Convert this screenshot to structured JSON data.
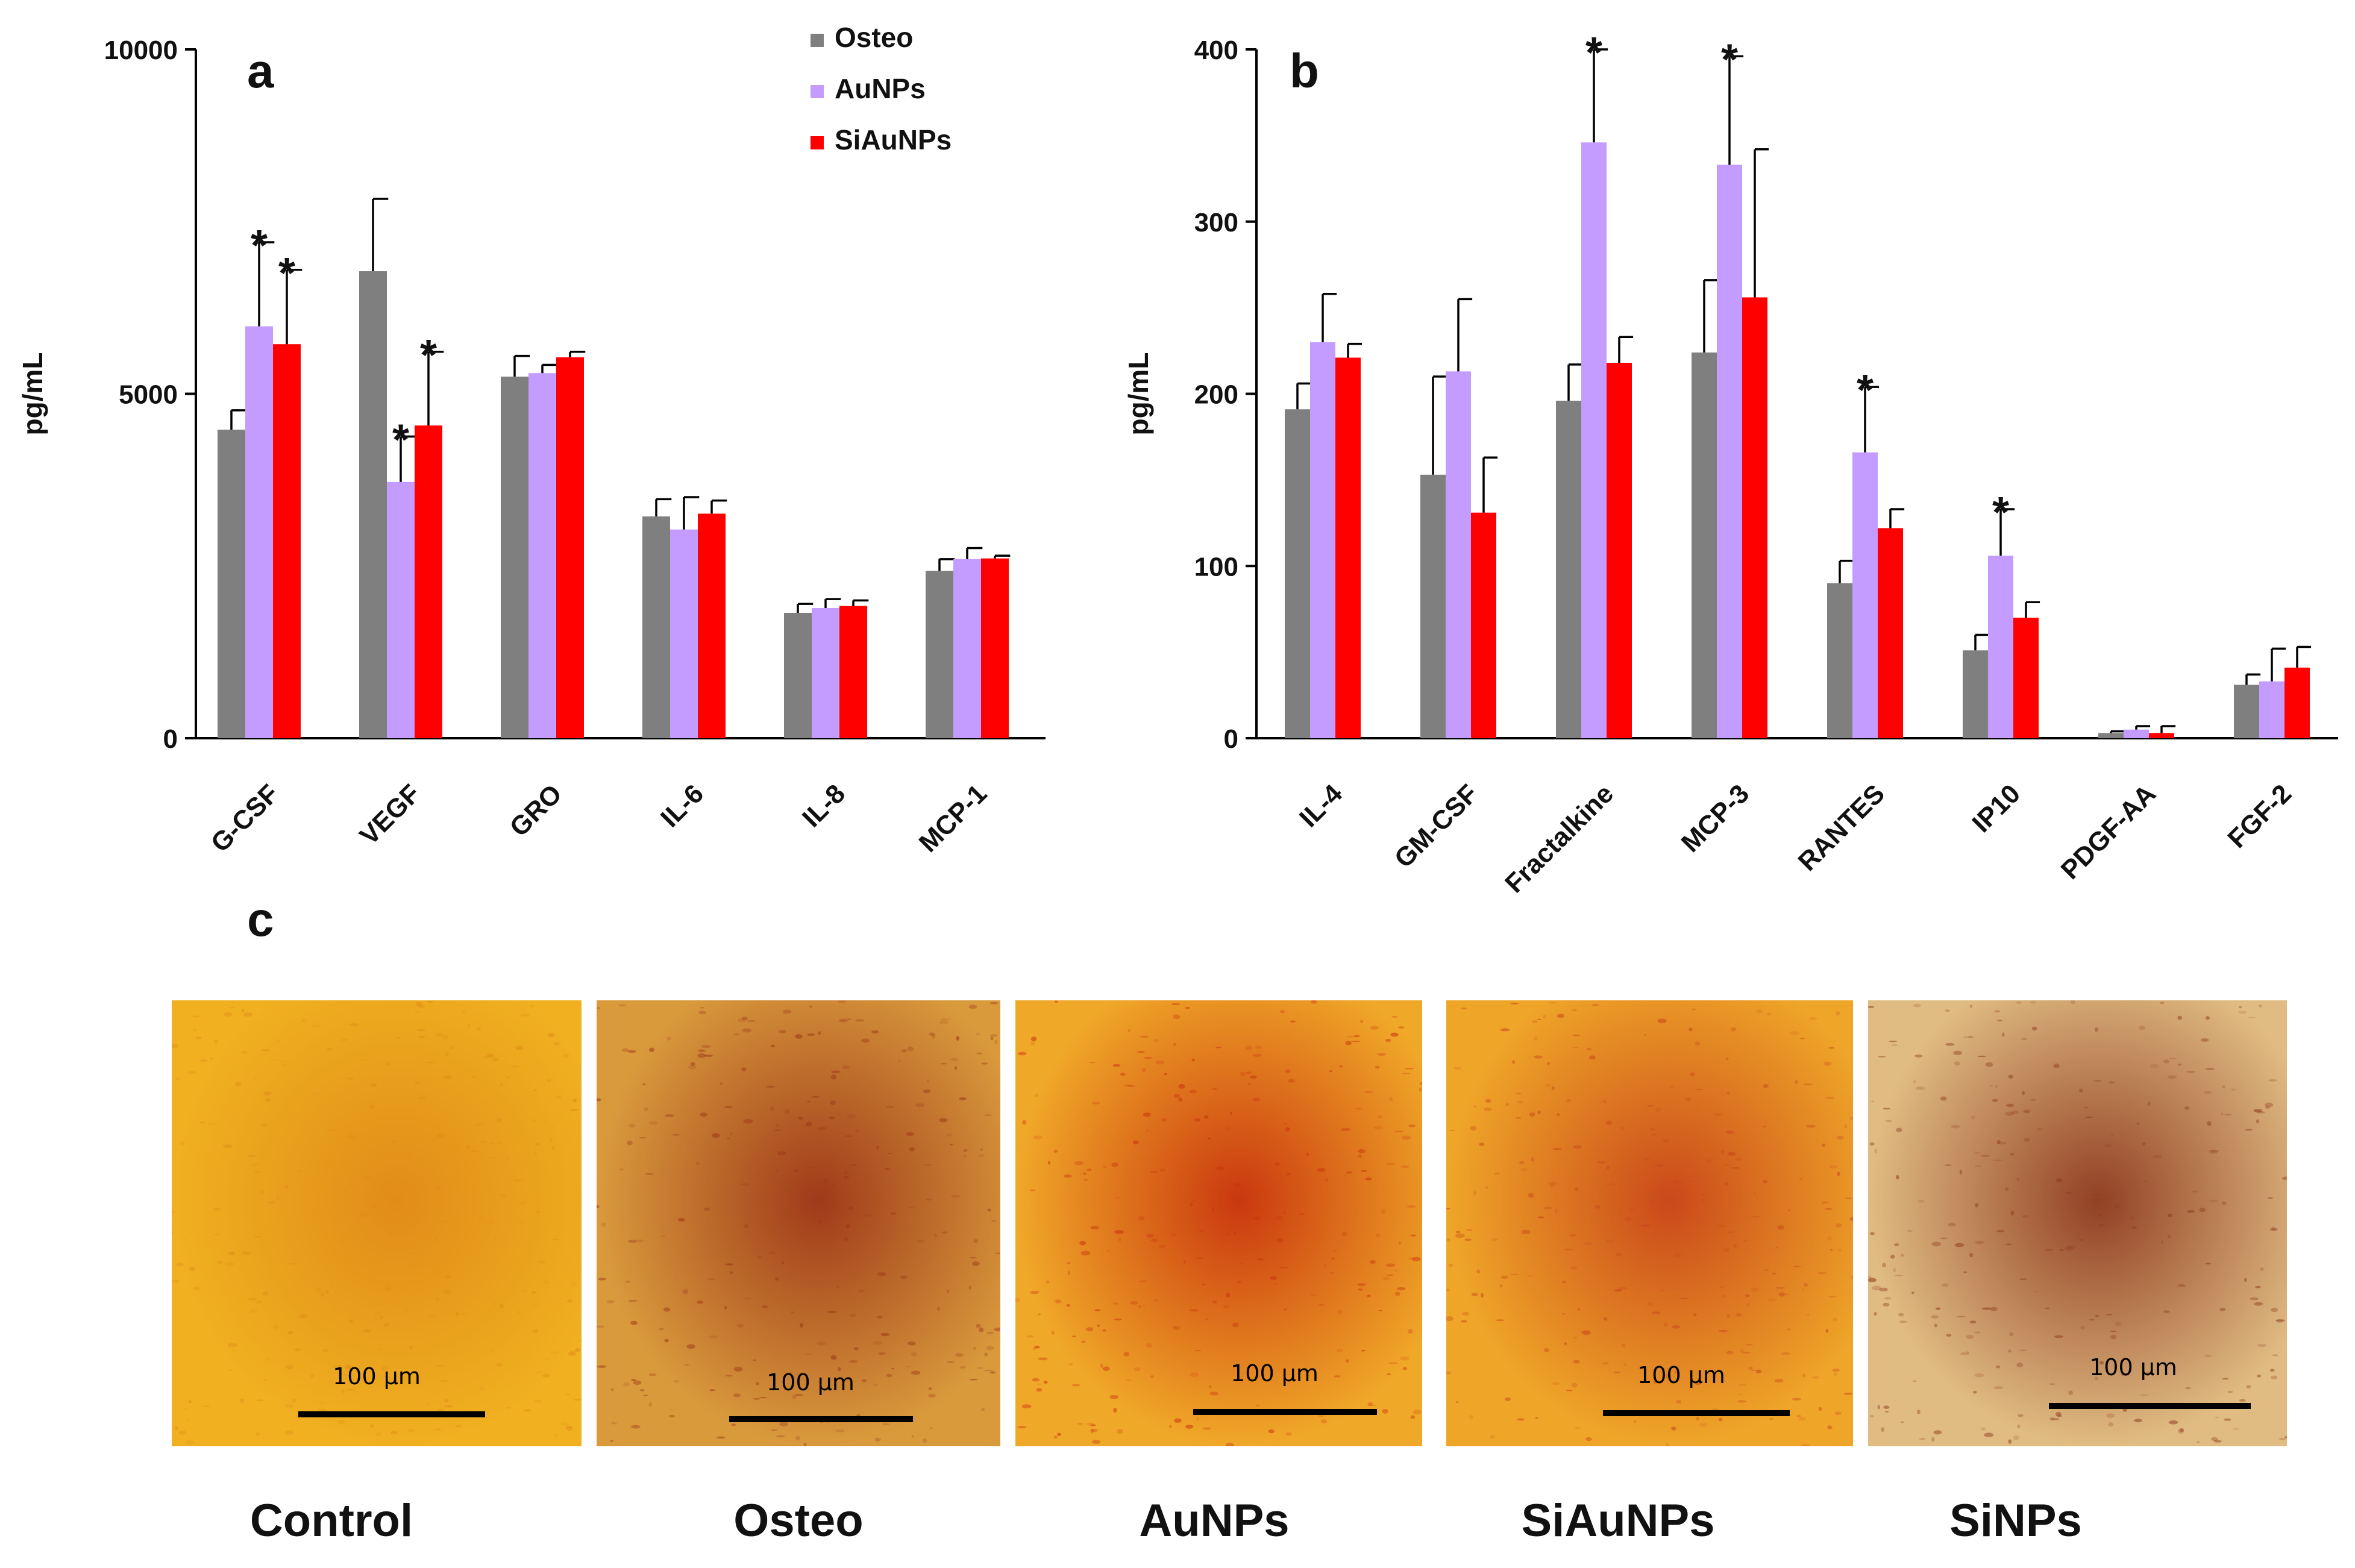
{
  "chart_data": [
    {
      "type": "bar",
      "panel_label": "a",
      "ylabel": "pg/mL",
      "ylim": [
        0,
        10000
      ],
      "yticks": [
        "0",
        "5000",
        "10000"
      ],
      "categories": [
        "G-CSF",
        "VEGF",
        "GRO",
        "IL-6",
        "IL-8",
        "MCP-1"
      ],
      "series": [
        {
          "name": "Osteo",
          "color": "#7f7f7f",
          "values": [
            4480,
            6780,
            5250,
            3220,
            1820,
            2430
          ],
          "errors": [
            280,
            1050,
            300,
            250,
            130,
            170
          ]
        },
        {
          "name": "AuNPs",
          "color": "#c49cff",
          "values": [
            5980,
            3720,
            5300,
            3030,
            1890,
            2600
          ],
          "errors": [
            1220,
            660,
            120,
            470,
            130,
            160
          ]
        },
        {
          "name": "SiAuNPs",
          "color": "#ff0000",
          "values": [
            5720,
            4540,
            5530,
            3260,
            1920,
            2610
          ],
          "errors": [
            1080,
            1070,
            80,
            190,
            80,
            40
          ]
        }
      ],
      "annotations": [
        {
          "text": "*",
          "category": "G-CSF",
          "series": "AuNPs"
        },
        {
          "text": "*",
          "category": "G-CSF",
          "series": "SiAuNPs"
        },
        {
          "text": "*",
          "category": "VEGF",
          "series": "AuNPs"
        },
        {
          "text": "*",
          "category": "VEGF",
          "series": "SiAuNPs"
        }
      ],
      "legend": "top-right"
    },
    {
      "type": "bar",
      "panel_label": "b",
      "ylabel": "pg/mL",
      "ylim": [
        0,
        400
      ],
      "yticks": [
        "0",
        "100",
        "200",
        "300",
        "400"
      ],
      "categories": [
        "IL-4",
        "GM-CSF",
        "Fractalkine",
        "MCP-3",
        "RANTES",
        "IP10",
        "PDGF-AA",
        "FGF-2"
      ],
      "series": [
        {
          "name": "Osteo",
          "color": "#7f7f7f",
          "values": [
            191,
            153,
            196,
            224,
            90,
            51,
            3,
            31
          ],
          "errors": [
            15,
            57,
            21,
            42,
            13,
            9,
            1,
            6
          ]
        },
        {
          "name": "AuNPs",
          "color": "#c49cff",
          "values": [
            230,
            213,
            346,
            333,
            166,
            106,
            5,
            33
          ],
          "errors": [
            28,
            42,
            54,
            63,
            38,
            27,
            2,
            19
          ]
        },
        {
          "name": "SiAuNPs",
          "color": "#ff0000",
          "values": [
            221,
            131,
            218,
            256,
            122,
            70,
            3,
            41
          ],
          "errors": [
            8,
            32,
            15,
            86,
            11,
            9,
            4,
            12
          ]
        }
      ],
      "annotations": [
        {
          "text": "*",
          "category": "Fractalkine",
          "series": "AuNPs"
        },
        {
          "text": "*",
          "category": "MCP-3",
          "series": "AuNPs"
        },
        {
          "text": "*",
          "category": "RANTES",
          "series": "AuNPs"
        },
        {
          "text": "*",
          "category": "IP10",
          "series": "AuNPs"
        }
      ]
    }
  ],
  "panel_c": {
    "label": "c",
    "images": [
      {
        "caption": "Control",
        "scale_label": "100 µm",
        "base_color": "#f0b020",
        "stain_color": "#e08a18"
      },
      {
        "caption": "Osteo",
        "scale_label": "100 µm",
        "base_color": "#d99a3c",
        "stain_color": "#9c3518"
      },
      {
        "caption": "AuNPs",
        "scale_label": "100 µm",
        "base_color": "#f0a828",
        "stain_color": "#c8320e"
      },
      {
        "caption": "SiAuNPs",
        "scale_label": "100 µm",
        "base_color": "#efa628",
        "stain_color": "#c8441a"
      },
      {
        "caption": "SiNPs",
        "scale_label": "100 µm",
        "base_color": "#e0bc82",
        "stain_color": "#8e3a20"
      }
    ]
  }
}
